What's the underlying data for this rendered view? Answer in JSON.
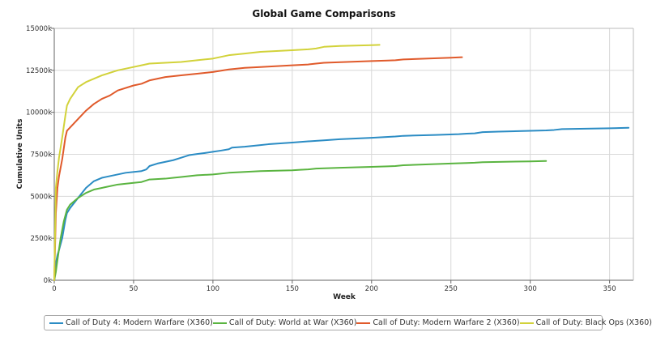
{
  "chart_data": {
    "type": "line",
    "title": "Global Game Comparisons",
    "xlabel": "Week",
    "ylabel": "Cumulative Units",
    "xlim": [
      0,
      365
    ],
    "ylim": [
      0,
      15000000
    ],
    "x_ticks": [
      0,
      50,
      100,
      150,
      200,
      250,
      300,
      350
    ],
    "x_tick_labels": [
      "0",
      "50",
      "100",
      "150",
      "200",
      "250",
      "300",
      "350"
    ],
    "y_ticks": [
      0,
      2500000,
      5000000,
      7500000,
      10000000,
      12500000,
      15000000
    ],
    "y_tick_labels": [
      "0k",
      "2500k",
      "5000k",
      "7500k",
      "10000k",
      "12500k",
      "15000k"
    ],
    "grid": true,
    "legend_position": "bottom",
    "series": [
      {
        "name": "Call of Duty 4: Modern Warfare (X360)",
        "color": "#2b8cc4",
        "x": [
          1,
          2,
          3,
          5,
          7,
          8,
          10,
          15,
          20,
          25,
          30,
          35,
          45,
          55,
          58,
          60,
          65,
          75,
          80,
          85,
          90,
          95,
          100,
          105,
          110,
          112,
          120,
          130,
          135,
          150,
          160,
          170,
          180,
          200,
          215,
          220,
          240,
          255,
          260,
          265,
          270,
          280,
          300,
          310,
          315,
          320,
          350,
          362
        ],
        "y": [
          1000000,
          1500000,
          1800000,
          2500000,
          3600000,
          4000000,
          4300000,
          4900000,
          5500000,
          5900000,
          6100000,
          6200000,
          6400000,
          6500000,
          6600000,
          6800000,
          6950000,
          7150000,
          7300000,
          7450000,
          7520000,
          7580000,
          7650000,
          7720000,
          7800000,
          7900000,
          7950000,
          8050000,
          8100000,
          8200000,
          8270000,
          8330000,
          8400000,
          8480000,
          8560000,
          8600000,
          8650000,
          8700000,
          8730000,
          8750000,
          8820000,
          8850000,
          8900000,
          8920000,
          8950000,
          9000000,
          9050000,
          9080000
        ]
      },
      {
        "name": "Call of Duty: World at War (X360)",
        "color": "#5ab440",
        "x": [
          1,
          2,
          4,
          6,
          8,
          10,
          15,
          20,
          25,
          30,
          40,
          50,
          55,
          60,
          70,
          75,
          80,
          90,
          100,
          110,
          130,
          150,
          155,
          160,
          165,
          180,
          200,
          210,
          215,
          220,
          250,
          260,
          265,
          270,
          300,
          310
        ],
        "y": [
          500000,
          1200000,
          2500000,
          3500000,
          4200000,
          4500000,
          4900000,
          5200000,
          5400000,
          5500000,
          5700000,
          5800000,
          5850000,
          6000000,
          6050000,
          6100000,
          6150000,
          6250000,
          6300000,
          6400000,
          6500000,
          6550000,
          6580000,
          6600000,
          6650000,
          6700000,
          6750000,
          6780000,
          6800000,
          6850000,
          6950000,
          6980000,
          7000000,
          7030000,
          7080000,
          7100000
        ]
      },
      {
        "name": "Call of Duty: Modern Warfare 2 (X360)",
        "color": "#e05a2b",
        "x": [
          1,
          2,
          3,
          5,
          7,
          8,
          10,
          15,
          20,
          25,
          30,
          35,
          40,
          50,
          55,
          60,
          70,
          80,
          90,
          100,
          110,
          120,
          130,
          150,
          160,
          165,
          170,
          200,
          210,
          215,
          220,
          250,
          257
        ],
        "y": [
          4000000,
          5500000,
          6200000,
          7200000,
          8500000,
          8900000,
          9100000,
          9600000,
          10100000,
          10500000,
          10800000,
          11000000,
          11300000,
          11600000,
          11700000,
          11900000,
          12100000,
          12200000,
          12300000,
          12400000,
          12550000,
          12650000,
          12700000,
          12800000,
          12850000,
          12900000,
          12950000,
          13050000,
          13080000,
          13100000,
          13150000,
          13250000,
          13280000
        ]
      },
      {
        "name": "Call of Duty: Black Ops (X360)",
        "color": "#d2d23a",
        "x": [
          1,
          2,
          3,
          5,
          7,
          8,
          10,
          15,
          20,
          25,
          30,
          40,
          50,
          55,
          60,
          70,
          80,
          90,
          100,
          110,
          120,
          130,
          150,
          160,
          165,
          170,
          180,
          200,
          205
        ],
        "y": [
          5500000,
          6500000,
          7300000,
          8500000,
          9800000,
          10400000,
          10800000,
          11500000,
          11800000,
          12000000,
          12200000,
          12500000,
          12700000,
          12800000,
          12900000,
          12950000,
          13000000,
          13100000,
          13200000,
          13400000,
          13500000,
          13600000,
          13700000,
          13750000,
          13800000,
          13900000,
          13950000,
          14000000,
          14020000
        ]
      }
    ]
  }
}
